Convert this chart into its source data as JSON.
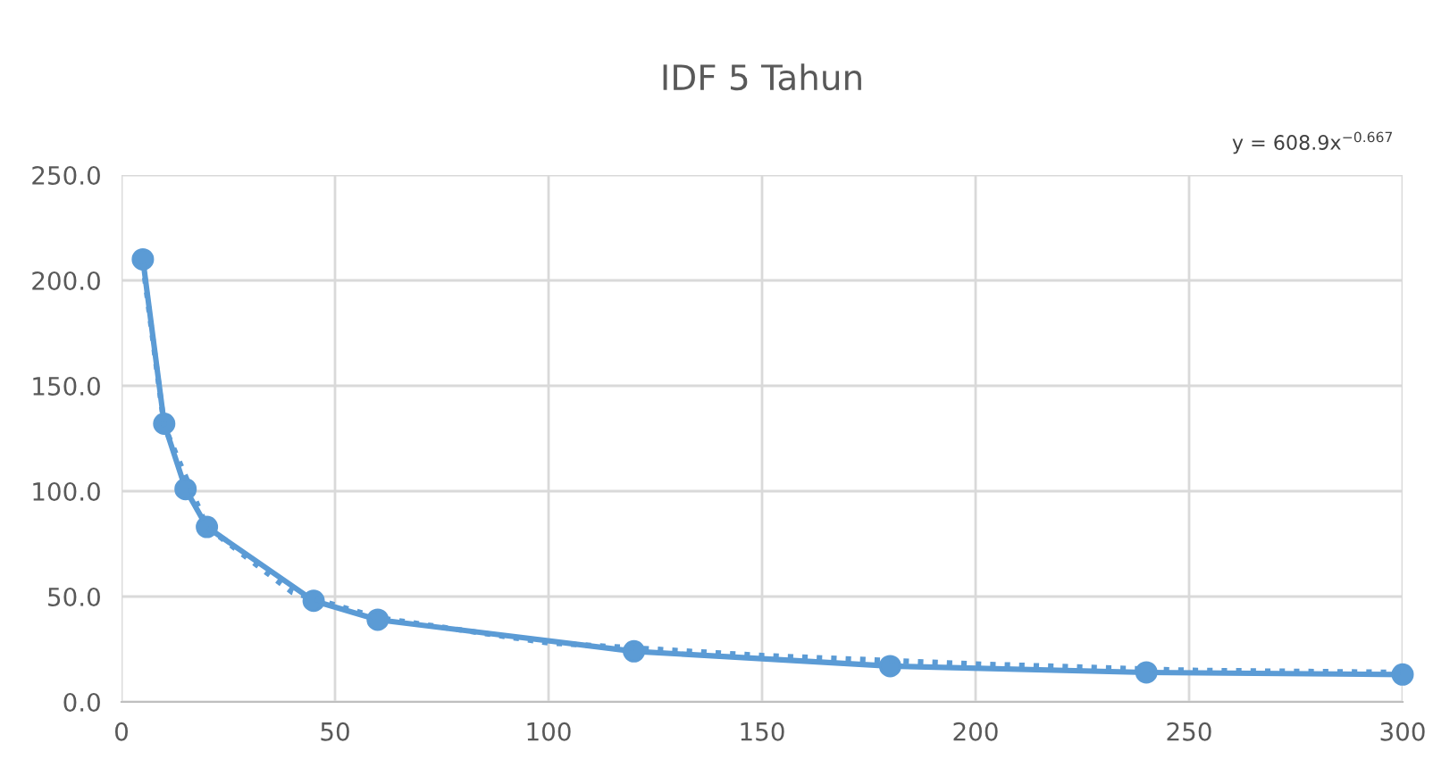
{
  "chart_data": {
    "type": "line",
    "title": "IDF 5 Tahun",
    "annotations": [
      "y = 608.9x$^{−0.667}$"
    ],
    "xlim": [
      0,
      300
    ],
    "xticks": [
      0,
      50,
      100,
      150,
      200,
      250,
      300
    ],
    "ylim": [
      0,
      250
    ],
    "yticks": [
      {
        "value": 0,
        "label": "0.0"
      },
      {
        "value": 50,
        "label": "50.0"
      },
      {
        "value": 100,
        "label": "100.0"
      },
      {
        "value": 150,
        "label": "150.0"
      },
      {
        "value": 200,
        "label": "200.0"
      },
      {
        "value": 250,
        "label": "250.0"
      }
    ],
    "grid": true,
    "series": [
      {
        "color": "#5b9bd5",
        "marker": "circle",
        "line_style": "solid",
        "x": [
          5,
          10,
          15,
          20,
          45,
          60,
          120,
          180,
          240,
          300
        ],
        "values": [
          210,
          132,
          101,
          83,
          48,
          39,
          24,
          17,
          14,
          13
        ]
      },
      {
        "color": "#5b9bd5",
        "marker": "none",
        "line_style": "dotted",
        "x": [
          5,
          10,
          20,
          40,
          60,
          100,
          150,
          200,
          250,
          300
        ],
        "values": [
          208,
          131,
          83,
          52,
          40,
          28,
          22,
          18,
          15,
          14
        ]
      }
    ]
  }
}
